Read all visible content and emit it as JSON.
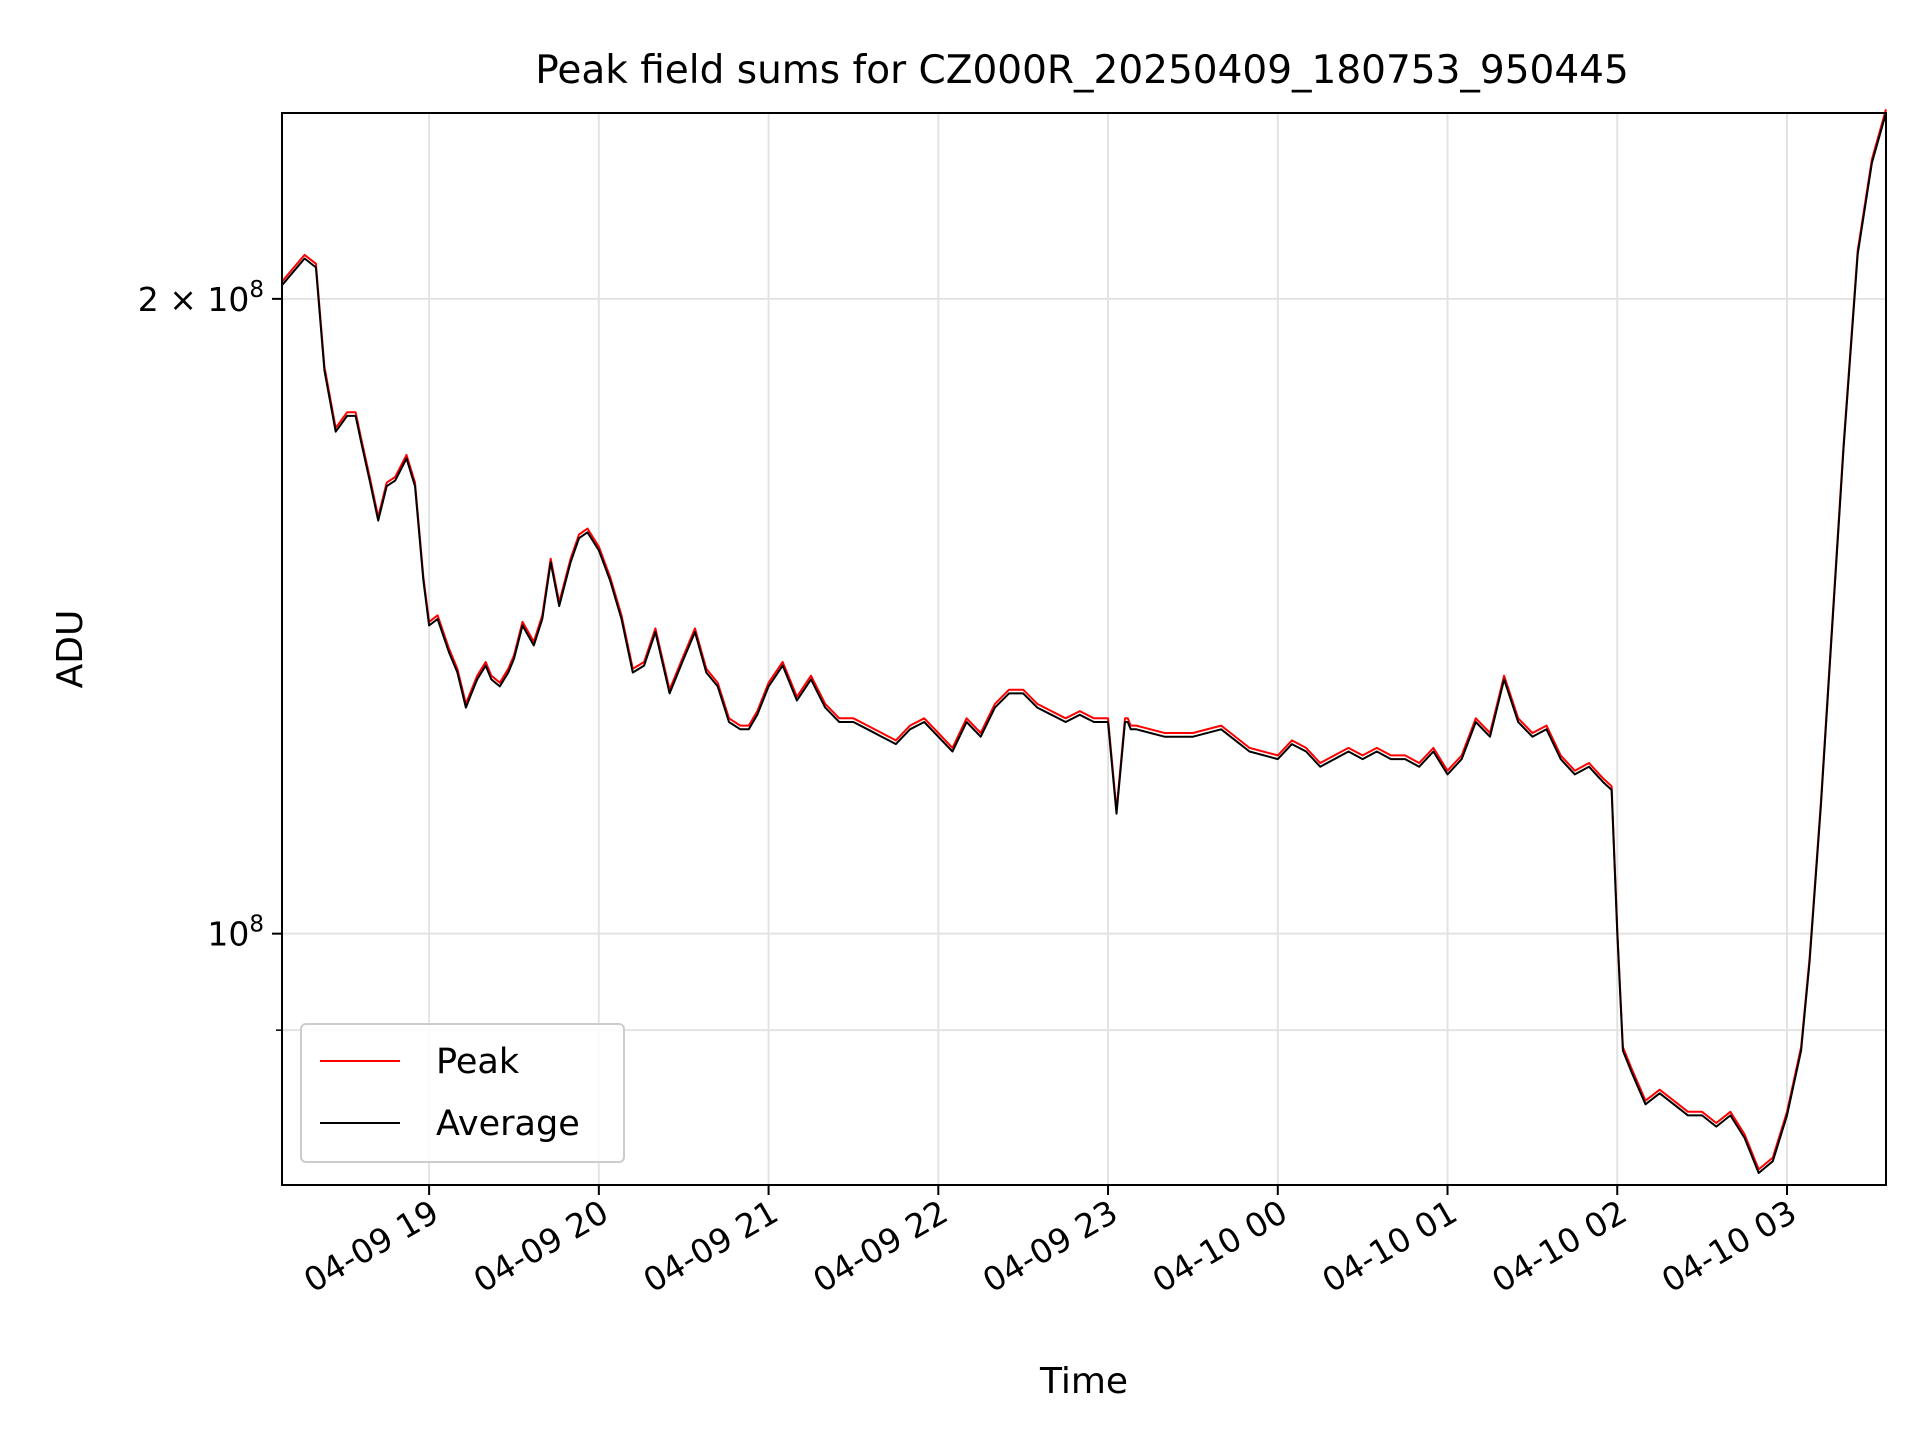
{
  "chart_data": {
    "type": "line",
    "title": "Peak field sums for CZ000R_20250409_180753_950445",
    "xlabel": "Time",
    "ylabel": "ADU",
    "y_scale": "log",
    "ylim": [
      76000000,
      245000000
    ],
    "xlim": [
      "2025-04-09 18:08",
      "2025-04-10 03:35"
    ],
    "x_ticks": [
      "2025-04-09 19:00",
      "2025-04-09 20:00",
      "2025-04-09 21:00",
      "2025-04-09 22:00",
      "2025-04-09 23:00",
      "2025-04-10 00:00",
      "2025-04-10 01:00",
      "2025-04-10 02:00",
      "2025-04-10 03:00"
    ],
    "x_tick_labels": [
      "04-09 19",
      "04-09 20",
      "04-09 21",
      "04-09 22",
      "04-09 23",
      "04-10 00",
      "04-10 01",
      "04-10 02",
      "04-10 03"
    ],
    "y_ticks": [
      100000000,
      200000000
    ],
    "y_tick_labels": [
      {
        "base": "10",
        "exp": "8",
        "mult": ""
      },
      {
        "base": "10",
        "exp": "8",
        "mult": "2 × "
      }
    ],
    "grid": true,
    "legend_position": "lower-left",
    "series": [
      {
        "name": "Peak",
        "color": "#ff0000",
        "offset": 0.004
      },
      {
        "name": "Average",
        "color": "#000000",
        "offset": 0
      }
    ],
    "x": [
      "2025-04-09 18:08",
      "2025-04-09 18:12",
      "2025-04-09 18:16",
      "2025-04-09 18:20",
      "2025-04-09 18:23",
      "2025-04-09 18:27",
      "2025-04-09 18:31",
      "2025-04-09 18:34",
      "2025-04-09 18:36",
      "2025-04-09 18:39",
      "2025-04-09 18:42",
      "2025-04-09 18:45",
      "2025-04-09 18:48",
      "2025-04-09 18:52",
      "2025-04-09 18:55",
      "2025-04-09 18:58",
      "2025-04-09 19:00",
      "2025-04-09 19:03",
      "2025-04-09 19:07",
      "2025-04-09 19:10",
      "2025-04-09 19:13",
      "2025-04-09 19:15",
      "2025-04-09 19:17",
      "2025-04-09 19:20",
      "2025-04-09 19:22",
      "2025-04-09 19:25",
      "2025-04-09 19:28",
      "2025-04-09 19:30",
      "2025-04-09 19:33",
      "2025-04-09 19:37",
      "2025-04-09 19:40",
      "2025-04-09 19:43",
      "2025-04-09 19:46",
      "2025-04-09 19:50",
      "2025-04-09 19:53",
      "2025-04-09 19:56",
      "2025-04-09 20:00",
      "2025-04-09 20:04",
      "2025-04-09 20:08",
      "2025-04-09 20:12",
      "2025-04-09 20:16",
      "2025-04-09 20:20",
      "2025-04-09 20:25",
      "2025-04-09 20:30",
      "2025-04-09 20:34",
      "2025-04-09 20:38",
      "2025-04-09 20:42",
      "2025-04-09 20:46",
      "2025-04-09 20:50",
      "2025-04-09 20:53",
      "2025-04-09 20:56",
      "2025-04-09 21:00",
      "2025-04-09 21:05",
      "2025-04-09 21:10",
      "2025-04-09 21:15",
      "2025-04-09 21:20",
      "2025-04-09 21:25",
      "2025-04-09 21:30",
      "2025-04-09 21:35",
      "2025-04-09 21:40",
      "2025-04-09 21:45",
      "2025-04-09 21:50",
      "2025-04-09 21:55",
      "2025-04-09 22:00",
      "2025-04-09 22:05",
      "2025-04-09 22:10",
      "2025-04-09 22:15",
      "2025-04-09 22:20",
      "2025-04-09 22:25",
      "2025-04-09 22:30",
      "2025-04-09 22:35",
      "2025-04-09 22:40",
      "2025-04-09 22:45",
      "2025-04-09 22:50",
      "2025-04-09 22:55",
      "2025-04-09 23:00",
      "2025-04-09 23:03",
      "2025-04-09 23:06",
      "2025-04-09 23:07",
      "2025-04-09 23:08",
      "2025-04-09 23:10",
      "2025-04-09 23:20",
      "2025-04-09 23:30",
      "2025-04-09 23:40",
      "2025-04-09 23:50",
      "2025-04-10 00:00",
      "2025-04-10 00:05",
      "2025-04-10 00:10",
      "2025-04-10 00:15",
      "2025-04-10 00:20",
      "2025-04-10 00:25",
      "2025-04-10 00:30",
      "2025-04-10 00:35",
      "2025-04-10 00:40",
      "2025-04-10 00:45",
      "2025-04-10 00:50",
      "2025-04-10 00:55",
      "2025-04-10 01:00",
      "2025-04-10 01:05",
      "2025-04-10 01:10",
      "2025-04-10 01:15",
      "2025-04-10 01:20",
      "2025-04-10 01:25",
      "2025-04-10 01:30",
      "2025-04-10 01:35",
      "2025-04-10 01:40",
      "2025-04-10 01:45",
      "2025-04-10 01:50",
      "2025-04-10 01:55",
      "2025-04-10 01:58",
      "2025-04-10 02:00",
      "2025-04-10 02:02",
      "2025-04-10 02:05",
      "2025-04-10 02:10",
      "2025-04-10 02:15",
      "2025-04-10 02:20",
      "2025-04-10 02:25",
      "2025-04-10 02:30",
      "2025-04-10 02:35",
      "2025-04-10 02:40",
      "2025-04-10 02:45",
      "2025-04-10 02:50",
      "2025-04-10 02:55",
      "2025-04-10 03:00",
      "2025-04-10 03:05",
      "2025-04-10 03:08",
      "2025-04-10 03:12",
      "2025-04-10 03:16",
      "2025-04-10 03:20",
      "2025-04-10 03:25",
      "2025-04-10 03:30",
      "2025-04-10 03:35"
    ],
    "values": [
      203000000,
      206000000,
      209000000,
      207000000,
      185000000,
      173000000,
      176000000,
      176000000,
      171000000,
      164000000,
      157000000,
      163000000,
      164000000,
      168000000,
      163000000,
      147000000,
      140000000,
      141000000,
      136000000,
      133000000,
      128000000,
      130000000,
      132000000,
      134000000,
      132000000,
      131000000,
      133000000,
      135000000,
      140000000,
      137000000,
      141000000,
      150000000,
      143000000,
      150000000,
      154000000,
      155000000,
      152000000,
      147000000,
      141000000,
      133000000,
      134000000,
      139000000,
      130000000,
      135000000,
      139000000,
      133000000,
      131000000,
      126000000,
      125000000,
      125000000,
      127000000,
      131000000,
      134000000,
      129000000,
      132000000,
      128000000,
      126000000,
      126000000,
      125000000,
      124000000,
      123000000,
      125000000,
      126000000,
      124000000,
      122000000,
      126000000,
      124000000,
      128000000,
      130000000,
      130000000,
      128000000,
      127000000,
      126000000,
      127000000,
      126000000,
      126000000,
      114000000,
      126000000,
      126000000,
      125000000,
      125000000,
      124000000,
      124000000,
      125000000,
      122000000,
      121000000,
      123000000,
      122000000,
      120000000,
      121000000,
      122000000,
      121000000,
      122000000,
      121000000,
      121000000,
      120000000,
      122000000,
      119000000,
      121000000,
      126000000,
      124000000,
      132000000,
      126000000,
      124000000,
      125000000,
      121000000,
      119000000,
      120000000,
      118000000,
      117000000,
      100000000,
      88000000,
      86000000,
      83000000,
      84000000,
      83000000,
      82000000,
      82000000,
      81000000,
      82000000,
      80000000,
      77000000,
      78000000,
      82000000,
      88000000,
      97000000,
      115000000,
      140000000,
      170000000,
      210000000,
      232000000,
      245000000
    ]
  }
}
